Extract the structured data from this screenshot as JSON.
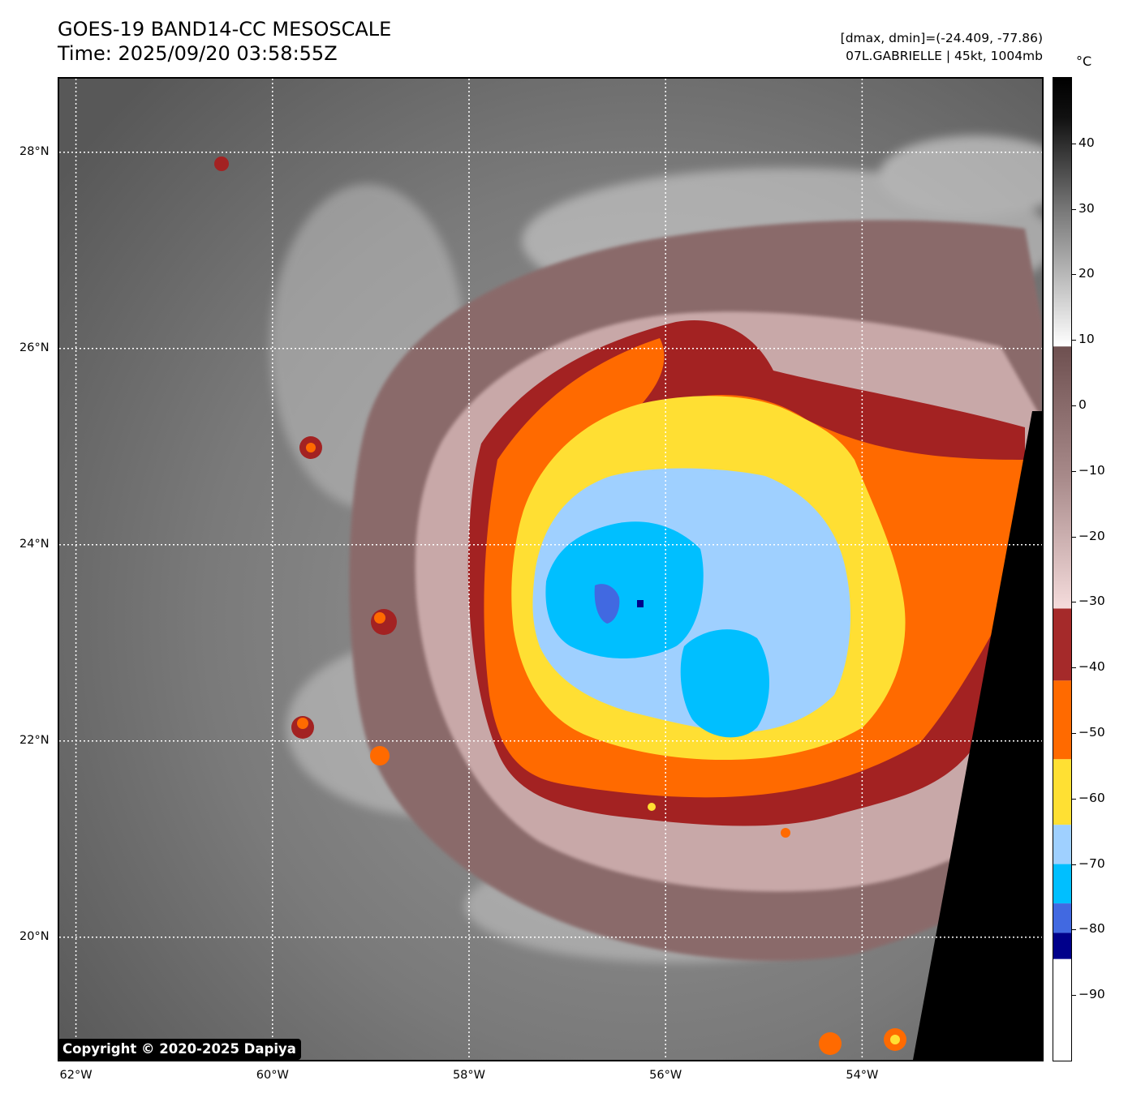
{
  "header": {
    "title": "GOES-19 BAND14-CC MESOSCALE",
    "time": "Time: 2025/09/20 03:58:55Z",
    "range_info": "[dmax, dmin]=(-24.409, -77.86)",
    "storm_info": "07L.GABRIELLE | 45kt, 1004mb"
  },
  "map": {
    "lat_labels": [
      {
        "text": "28°N",
        "value": 28
      },
      {
        "text": "26°N",
        "value": 26
      },
      {
        "text": "24°N",
        "value": 24
      },
      {
        "text": "22°N",
        "value": 22
      },
      {
        "text": "20°N",
        "value": 20
      }
    ],
    "lon_labels": [
      {
        "text": "62°W",
        "value": -62
      },
      {
        "text": "60°W",
        "value": -60
      },
      {
        "text": "58°W",
        "value": -58
      },
      {
        "text": "56°W",
        "value": -56
      },
      {
        "text": "54°W",
        "value": -54
      }
    ],
    "lat_range": [
      18.75,
      28.75
    ],
    "lon_range": [
      -62.17,
      -52.17
    ],
    "grid": "dotted white"
  },
  "colorbar": {
    "unit": "°C",
    "range": [
      -100,
      50
    ],
    "labels": [
      "40",
      "30",
      "20",
      "10",
      "0",
      "−10",
      "−20",
      "−30",
      "−40",
      "−50",
      "−60",
      "−70",
      "−80",
      "−90"
    ],
    "label_values": [
      40,
      30,
      20,
      10,
      0,
      -10,
      -20,
      -30,
      -40,
      -50,
      -60,
      -70,
      -80,
      -90
    ],
    "colors": {
      "warm_top": "#000000",
      "gray_mid": "#808080",
      "white_10": "#ffffff",
      "brown_9": "#806060",
      "pink_m30": "#f5d6d6",
      "dark_red": "#a52a2a",
      "orange": "#ff6a00",
      "yellow": "#ffe033",
      "light_blue": "#9fd0ff",
      "cyan": "#00bfff",
      "royal_blue": "#4169e1",
      "navy": "#00008b",
      "coldest": "#ffffff"
    }
  },
  "footer": {
    "copyright": "Copyright © 2020-2025 Dapiya"
  }
}
